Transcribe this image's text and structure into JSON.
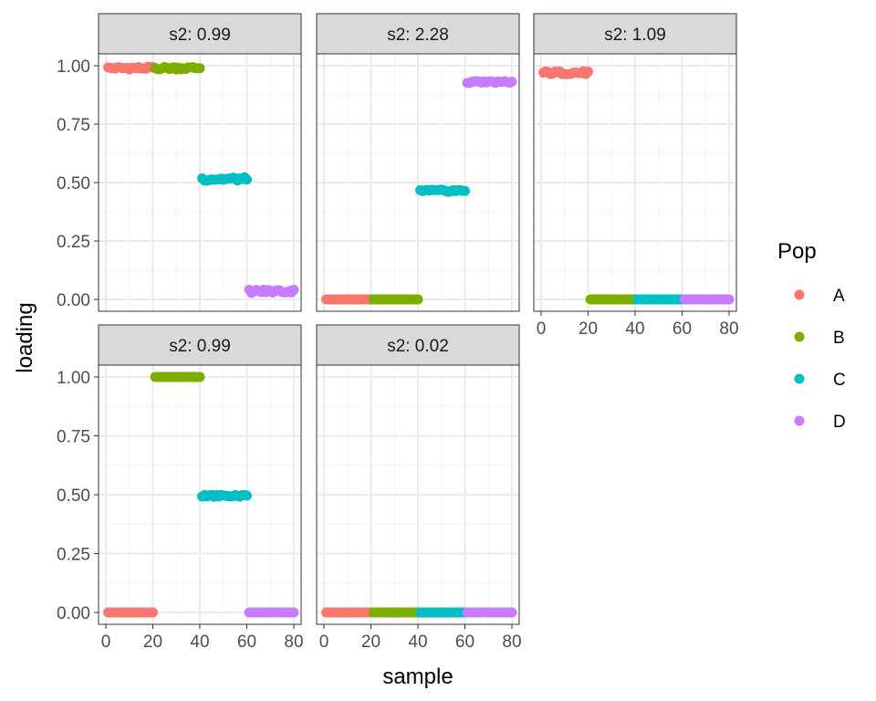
{
  "chart_data": {
    "type": "scatter",
    "xlabel": "sample",
    "ylabel": "loading",
    "xlim": [
      0,
      80
    ],
    "ylim": [
      0,
      1
    ],
    "x_ticks": [
      "0",
      "20",
      "40",
      "60",
      "80"
    ],
    "y_ticks": [
      "0.00",
      "0.25",
      "0.50",
      "0.75",
      "1.00"
    ],
    "grid": true,
    "legend": {
      "title": "Pop",
      "placement": "right",
      "entries": [
        {
          "name": "A",
          "color": "#F8766D"
        },
        {
          "name": "B",
          "color": "#7CAE00"
        },
        {
          "name": "C",
          "color": "#00BFC4"
        },
        {
          "name": "D",
          "color": "#C77CFF"
        }
      ]
    },
    "panels": [
      {
        "label": "s2: 0.99",
        "series": [
          {
            "name": "A",
            "x_range": [
              1,
              20
            ],
            "level": 0.99,
            "jitter": 0.006
          },
          {
            "name": "B",
            "x_range": [
              21,
              40
            ],
            "level": 0.99,
            "jitter": 0.006
          },
          {
            "name": "C",
            "x_range": [
              41,
              60
            ],
            "level": 0.515,
            "jitter": 0.008
          },
          {
            "name": "D",
            "x_range": [
              61,
              80
            ],
            "level": 0.035,
            "jitter": 0.008
          }
        ]
      },
      {
        "label": "s2: 2.28",
        "series": [
          {
            "name": "A",
            "x_range": [
              1,
              20
            ],
            "level": 0.0,
            "jitter": 0.0
          },
          {
            "name": "B",
            "x_range": [
              21,
              40
            ],
            "level": 0.0,
            "jitter": 0.0
          },
          {
            "name": "C",
            "x_range": [
              41,
              60
            ],
            "level": 0.465,
            "jitter": 0.005
          },
          {
            "name": "D",
            "x_range": [
              61,
              80
            ],
            "level": 0.93,
            "jitter": 0.004
          }
        ]
      },
      {
        "label": "s2: 1.09",
        "series": [
          {
            "name": "A",
            "x_range": [
              1,
              20
            ],
            "level": 0.97,
            "jitter": 0.007
          },
          {
            "name": "B",
            "x_range": [
              21,
              40
            ],
            "level": 0.0,
            "jitter": 0.0
          },
          {
            "name": "C",
            "x_range": [
              41,
              60
            ],
            "level": 0.0,
            "jitter": 0.0
          },
          {
            "name": "D",
            "x_range": [
              61,
              80
            ],
            "level": 0.0,
            "jitter": 0.0
          }
        ]
      },
      {
        "label": "s2: 0.99",
        "series": [
          {
            "name": "A",
            "x_range": [
              1,
              20
            ],
            "level": 0.0,
            "jitter": 0.0
          },
          {
            "name": "B",
            "x_range": [
              21,
              40
            ],
            "level": 1.0,
            "jitter": 0.0
          },
          {
            "name": "C",
            "x_range": [
              41,
              60
            ],
            "level": 0.495,
            "jitter": 0.005
          },
          {
            "name": "D",
            "x_range": [
              61,
              80
            ],
            "level": 0.0,
            "jitter": 0.0
          }
        ]
      },
      {
        "label": "s2: 0.02",
        "series": [
          {
            "name": "A",
            "x_range": [
              1,
              20
            ],
            "level": 0.0,
            "jitter": 0.0
          },
          {
            "name": "B",
            "x_range": [
              21,
              40
            ],
            "level": 0.0,
            "jitter": 0.0
          },
          {
            "name": "C",
            "x_range": [
              41,
              60
            ],
            "level": 0.0,
            "jitter": 0.0
          },
          {
            "name": "D",
            "x_range": [
              61,
              80
            ],
            "level": 0.0,
            "jitter": 0.0
          }
        ]
      }
    ]
  }
}
